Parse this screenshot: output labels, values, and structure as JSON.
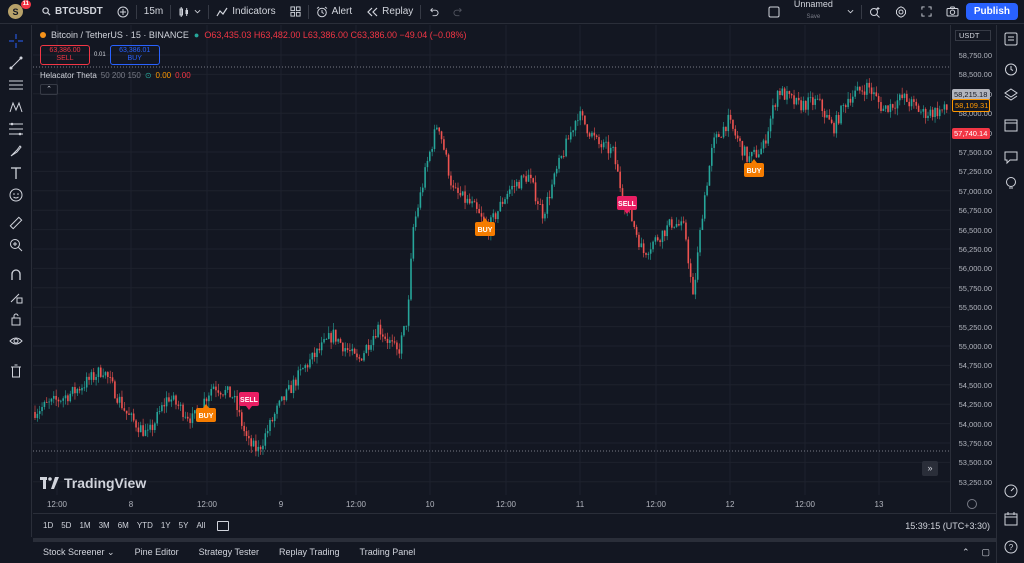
{
  "topbar": {
    "avatar_letter": "S",
    "avatar_badge": "11",
    "symbol": "BTCUSDT",
    "interval": "15m",
    "indicators": "Indicators",
    "alert": "Alert",
    "replay": "Replay",
    "layout_name": "Unnamed",
    "layout_save": "Save",
    "publish": "Publish"
  },
  "legend": {
    "title": "Bitcoin / TetherUS · 15 · BINANCE",
    "ohlc": "O63,435.03  H63,482.00  L63,386.00  C63,386.00  −49.04 (−0.08%)",
    "sell_price": "63,386.00",
    "sell_label": "SELL",
    "spread": "0.01",
    "buy_price": "63,386.01",
    "buy_label": "BUY"
  },
  "indicator": {
    "name": "Helacator Theta",
    "params": "50 200 150",
    "value1": "0.00",
    "value2": "0.00"
  },
  "currency": "USDT",
  "price_scale": [
    "58,750.00",
    "58,500.00",
    "58,250.00",
    "58,000.00",
    "57,750.00",
    "57,500.00",
    "57,250.00",
    "57,000.00",
    "56,750.00",
    "56,500.00",
    "56,250.00",
    "56,000.00",
    "55,750.00",
    "55,500.00",
    "55,250.00",
    "55,000.00",
    "54,750.00",
    "54,500.00",
    "54,250.00",
    "54,000.00",
    "53,750.00",
    "53,500.00",
    "53,250.00"
  ],
  "price_tags": {
    "current_a": "58,215.18",
    "current_b": "58,109.31",
    "low": "57,740.14"
  },
  "time_scale": [
    "12:00",
    "8",
    "12:00",
    "9",
    "12:00",
    "10",
    "12:00",
    "11",
    "12:00",
    "12",
    "12:00",
    "13"
  ],
  "signals": [
    "BUY",
    "SELL",
    "BUY",
    "SELL",
    "BUY"
  ],
  "watermark": "TradingView",
  "ranges": [
    "1D",
    "5D",
    "1M",
    "3M",
    "6M",
    "YTD",
    "1Y",
    "5Y",
    "All"
  ],
  "clock": "15:39:15 (UTC+3:30)",
  "panels": [
    "Stock Screener",
    "Pine Editor",
    "Strategy Tester",
    "Replay Trading",
    "Trading Panel"
  ],
  "colors": {
    "up": "#26a69a",
    "down": "#ef5350",
    "sell_tag": "#e91e63",
    "buy_tag": "#f57c00",
    "accent": "#2962ff"
  }
}
